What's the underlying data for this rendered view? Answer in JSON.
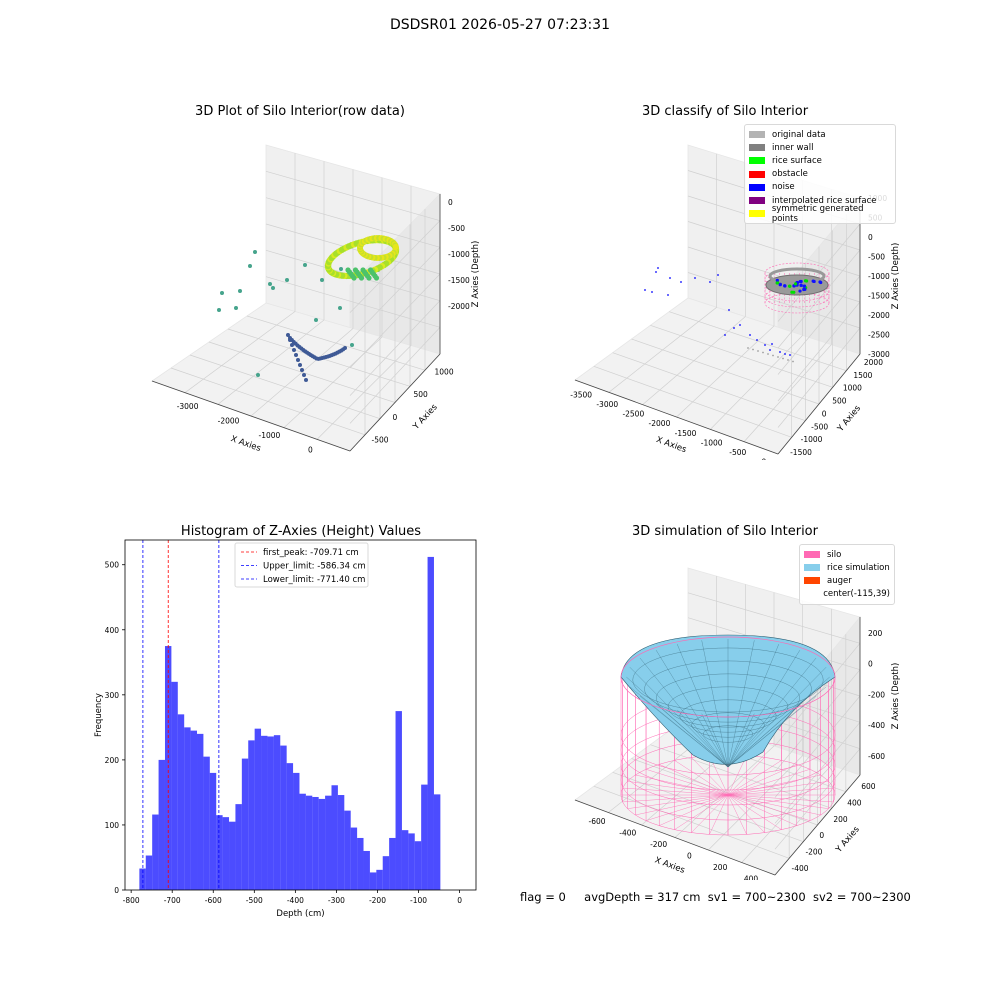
{
  "suptitle": "DSDSR01 2026-05-27 07:23:31",
  "footer": {
    "flag": "flag = 0",
    "avg_depth": "avgDepth = 317 cm",
    "sv1": "sv1 = 700~2300",
    "sv2": "sv2 = 700~2300"
  },
  "plots": {
    "raw": {
      "title": "3D Plot of Silo Interior(row data)",
      "xlabel": "X Axies",
      "ylabel": "Y Axies",
      "zlabel": "Z Axies (Depth)",
      "xticks": [
        "-3000",
        "-2000",
        "-1000",
        "0"
      ],
      "yticks": [
        "-500",
        "0",
        "500",
        "1000"
      ],
      "zticks": [
        "0",
        "-500",
        "-1000",
        "-1500",
        "-2000"
      ]
    },
    "classify": {
      "title": "3D classify of Silo Interior",
      "xlabel": "X Axies",
      "ylabel": "Y Axies",
      "zlabel": "Z Axies (Depth)",
      "xticks": [
        "-3500",
        "-3000",
        "-2500",
        "-2000",
        "-1500",
        "-1000",
        "-500",
        "0"
      ],
      "yticks": [
        "-1500",
        "-1000",
        "-500",
        "0",
        "500",
        "1000",
        "1500",
        "2000"
      ],
      "zticks": [
        "1000",
        "500",
        "0",
        "-500",
        "-1000",
        "-1500",
        "-2000",
        "-2500",
        "-3000"
      ],
      "legend": [
        {
          "label": "original data",
          "color": "#b3b3b3"
        },
        {
          "label": "inner wall",
          "color": "#808080"
        },
        {
          "label": "rice surface",
          "color": "#00ff00"
        },
        {
          "label": "obstacle",
          "color": "#ff0000"
        },
        {
          "label": "noise",
          "color": "#0000ff"
        },
        {
          "label": "interpolated rice surface",
          "color": "#800080"
        },
        {
          "label": "symmetric generated points",
          "color": "#ffff00"
        }
      ]
    },
    "simulation": {
      "title": "3D simulation of Silo Interior",
      "xlabel": "X Axies",
      "ylabel": "Y Axies",
      "zlabel": "Z Axies (Depth)",
      "xticks": [
        "-600",
        "-400",
        "-200",
        "0",
        "200",
        "400"
      ],
      "yticks": [
        "-400",
        "-200",
        "0",
        "200",
        "400",
        "600"
      ],
      "zticks": [
        "200",
        "0",
        "-200",
        "-400",
        "-600"
      ],
      "legend": [
        {
          "label": "silo",
          "color": "#ff69b4"
        },
        {
          "label": "rice simulation",
          "color": "#87ceeb"
        },
        {
          "label": "auger",
          "color": "#ff4500"
        },
        {
          "label": "center(-115,39)",
          "color": ""
        }
      ]
    }
  },
  "chart_data": {
    "type": "bar",
    "title": "Histogram of Z-Axies (Height) Values",
    "xlabel": "Depth (cm)",
    "ylabel": "Frequency",
    "xlim": [
      -815,
      40
    ],
    "ylim": [
      0,
      538
    ],
    "xticks": [
      -800,
      -700,
      -600,
      -500,
      -400,
      -300,
      -200,
      -100,
      0
    ],
    "yticks": [
      0,
      100,
      200,
      300,
      400,
      500
    ],
    "bin_start": -780,
    "bin_width": 15.6,
    "values": [
      33,
      53,
      116,
      200,
      375,
      320,
      270,
      250,
      245,
      240,
      205,
      180,
      115,
      112,
      105,
      132,
      202,
      230,
      248,
      237,
      236,
      238,
      222,
      195,
      180,
      148,
      145,
      143,
      140,
      145,
      161,
      146,
      122,
      96,
      80,
      60,
      27,
      31,
      52,
      80,
      275,
      92,
      87,
      75,
      162,
      512,
      147
    ],
    "bar_color": "#0000ff",
    "lines": [
      {
        "label": "first_peak: -709.71 cm",
        "x": -709.71,
        "color": "#ff0000"
      },
      {
        "label": "Upper_limit: -586.34 cm",
        "x": -586.34,
        "color": "#0000ff"
      },
      {
        "label": "Lower_limit: -771.40 cm",
        "x": -771.4,
        "color": "#0000ff"
      }
    ]
  }
}
